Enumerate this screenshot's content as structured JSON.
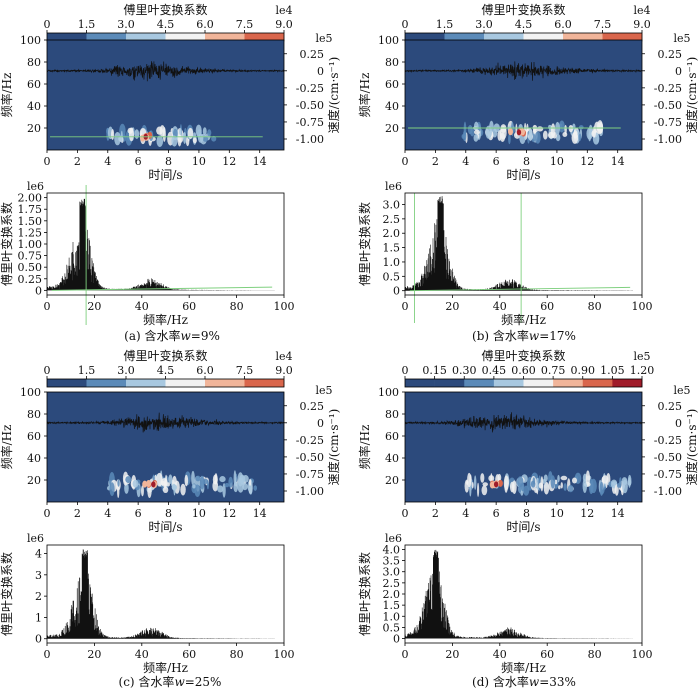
{
  "chart_data": [
    {
      "panel": "a",
      "caption_prefix": "(a) 含水率",
      "caption_var": "w",
      "caption_suffix": "=9%",
      "spectrogram": {
        "type": "heatmap",
        "colorbar": {
          "label": "傅里叶变换系数",
          "exponent": "le4",
          "ticks": [
            "0",
            "1.5",
            "3.0",
            "4.5",
            "6.0",
            "7.5",
            "9.0"
          ]
        },
        "xlabel": "时间/s",
        "ylabel": "频率/Hz",
        "x_ticks": [
          0,
          2,
          4,
          6,
          8,
          10,
          12,
          14
        ],
        "xlim": [
          0,
          15.6
        ],
        "y_ticks": [
          20,
          40,
          60,
          80,
          100
        ],
        "ylim": [
          0,
          100
        ],
        "y2label": "速度/(cm·s⁻¹)",
        "y2_exponent": "le5",
        "y2_ticks": [
          "0.25",
          "0",
          "-0.25",
          "-0.50",
          "-0.75",
          "-1.00"
        ],
        "horizontal_line_hz": 12,
        "energy_band_hz": [
          8,
          18
        ],
        "energy_span_s": [
          4,
          11
        ],
        "peak_time_s": 6.5,
        "peak_hz": 12
      },
      "spectrum": {
        "type": "line",
        "exponent": "le6",
        "xlabel": "频率/Hz",
        "ylabel": "傅里叶变换系数",
        "x_ticks": [
          0,
          20,
          40,
          60,
          80,
          100
        ],
        "xlim": [
          0,
          100
        ],
        "y_ticks": [
          "0",
          "0.25",
          "0.50",
          "0.75",
          "1.00",
          "1.25",
          "1.50",
          "1.75",
          "2.00"
        ],
        "ylim": [
          -0.1,
          2.1
        ],
        "peak_hz": 15,
        "peak_value": 2.0,
        "vertical_line_hz": 16.5
      }
    },
    {
      "panel": "b",
      "caption_prefix": "(b) 含水率",
      "caption_var": "w",
      "caption_suffix": "=17%",
      "spectrogram": {
        "type": "heatmap",
        "colorbar": {
          "label": "傅里叶变换系数",
          "exponent": "le4",
          "ticks": [
            "0",
            "1.5",
            "3.0",
            "4.5",
            "6.0",
            "7.5",
            "9.0"
          ]
        },
        "xlabel": "时间/s",
        "ylabel": "频率/Hz",
        "x_ticks": [
          0,
          2,
          4,
          6,
          8,
          10,
          12,
          14
        ],
        "xlim": [
          0,
          15.6
        ],
        "y_ticks": [
          20,
          40,
          60,
          80,
          100
        ],
        "ylim": [
          0,
          100
        ],
        "y2label": "速度/(cm·s⁻¹)",
        "y2_exponent": "le5",
        "y2_ticks": [
          "0.25",
          "0",
          "-0.25",
          "-0.50",
          "-0.75",
          "-1.00"
        ],
        "horizontal_line_hz": 20,
        "energy_band_hz": [
          10,
          22
        ],
        "energy_span_s": [
          3.5,
          13
        ],
        "peak_time_s": 7.5,
        "peak_hz": 16
      },
      "spectrum": {
        "type": "line",
        "exponent": "le6",
        "xlabel": "频率/Hz",
        "ylabel": "傅里叶变换系数",
        "x_ticks": [
          0,
          20,
          40,
          60,
          80,
          100
        ],
        "xlim": [
          0,
          100
        ],
        "y_ticks": [
          "0",
          "0.5",
          "1.0",
          "1.5",
          "2.0",
          "2.5",
          "3.0"
        ],
        "ylim": [
          -0.15,
          3.4
        ],
        "peak_hz": 15,
        "peak_value": 3.3,
        "vertical_lines_hz": [
          4,
          49
        ]
      }
    },
    {
      "panel": "c",
      "caption_prefix": "(c) 含水率",
      "caption_var": "w",
      "caption_suffix": "=25%",
      "spectrogram": {
        "type": "heatmap",
        "colorbar": {
          "label": "傅里叶变换系数",
          "exponent": "le4",
          "ticks": [
            "0",
            "1.5",
            "3.0",
            "4.5",
            "6.0",
            "7.5",
            "9.0"
          ]
        },
        "xlabel": "时间/s",
        "ylabel": "频率/Hz",
        "x_ticks": [
          0,
          2,
          4,
          6,
          8,
          10,
          12,
          14
        ],
        "xlim": [
          0,
          15.6
        ],
        "y_ticks": [
          20,
          40,
          60,
          80,
          100
        ],
        "ylim": [
          0,
          100
        ],
        "y2label": "速度/(cm·s⁻¹)",
        "y2_exponent": "le5",
        "y2_ticks": [
          "0.25",
          "0",
          "-0.25",
          "-0.50",
          "-0.75",
          "-1.00"
        ],
        "energy_band_hz": [
          10,
          22
        ],
        "energy_span_s": [
          4,
          14
        ],
        "peak_time_s": 7,
        "peak_hz": 16
      },
      "spectrum": {
        "type": "line",
        "exponent": "le6",
        "xlabel": "频率/Hz",
        "ylabel": "傅里叶变换系数",
        "x_ticks": [
          0,
          20,
          40,
          60,
          80,
          100
        ],
        "xlim": [
          0,
          100
        ],
        "y_ticks": [
          "0",
          "1",
          "2",
          "3",
          "4"
        ],
        "ylim": [
          -0.2,
          4.4
        ],
        "peak_hz": 16,
        "peak_value": 4.2
      }
    },
    {
      "panel": "d",
      "caption_prefix": "(d) 含水率",
      "caption_var": "w",
      "caption_suffix": "=33%",
      "spectrogram": {
        "type": "heatmap",
        "colorbar": {
          "label": "傅里叶变换系数",
          "exponent": "le5",
          "ticks": [
            "0",
            "0.15",
            "0.30",
            "0.45",
            "0.60",
            "0.75",
            "0.90",
            "1.05",
            "1.20"
          ]
        },
        "xlabel": "时间/s",
        "ylabel": "频率/Hz",
        "x_ticks": [
          0,
          2,
          4,
          6,
          8,
          10,
          12,
          14
        ],
        "xlim": [
          0,
          15.6
        ],
        "y_ticks": [
          20,
          40,
          60,
          80,
          100
        ],
        "ylim": [
          0,
          100
        ],
        "y2label": "速度/(cm·s⁻¹)",
        "y2_exponent": "le5",
        "y2_ticks": [
          "0.25",
          "0",
          "-0.25",
          "-0.50",
          "-0.75",
          "-1.00"
        ],
        "energy_band_hz": [
          10,
          22
        ],
        "energy_span_s": [
          4,
          15
        ],
        "peak_time_s": 6,
        "peak_hz": 16
      },
      "spectrum": {
        "type": "line",
        "exponent": "le6",
        "xlabel": "频率/Hz",
        "ylabel": "傅里叶变换系数",
        "x_ticks": [
          0,
          20,
          40,
          60,
          80,
          100
        ],
        "xlim": [
          0,
          100
        ],
        "y_ticks": [
          "0",
          "0.5",
          "1.0",
          "1.5",
          "2.0",
          "2.5",
          "3.0",
          "3.5",
          "4.0"
        ],
        "ylim": [
          -0.2,
          4.2
        ],
        "peak_hz": 13,
        "peak_value": 4.0
      }
    }
  ],
  "colors": {
    "background": "#2c4a7c",
    "trace": "#111111",
    "marker_line": "#7fd07f",
    "colormap": [
      "#2c4a7c",
      "#5b8ab8",
      "#a8c8e0",
      "#f2f2f2",
      "#f1b59a",
      "#d9664c",
      "#a01c2a"
    ]
  }
}
